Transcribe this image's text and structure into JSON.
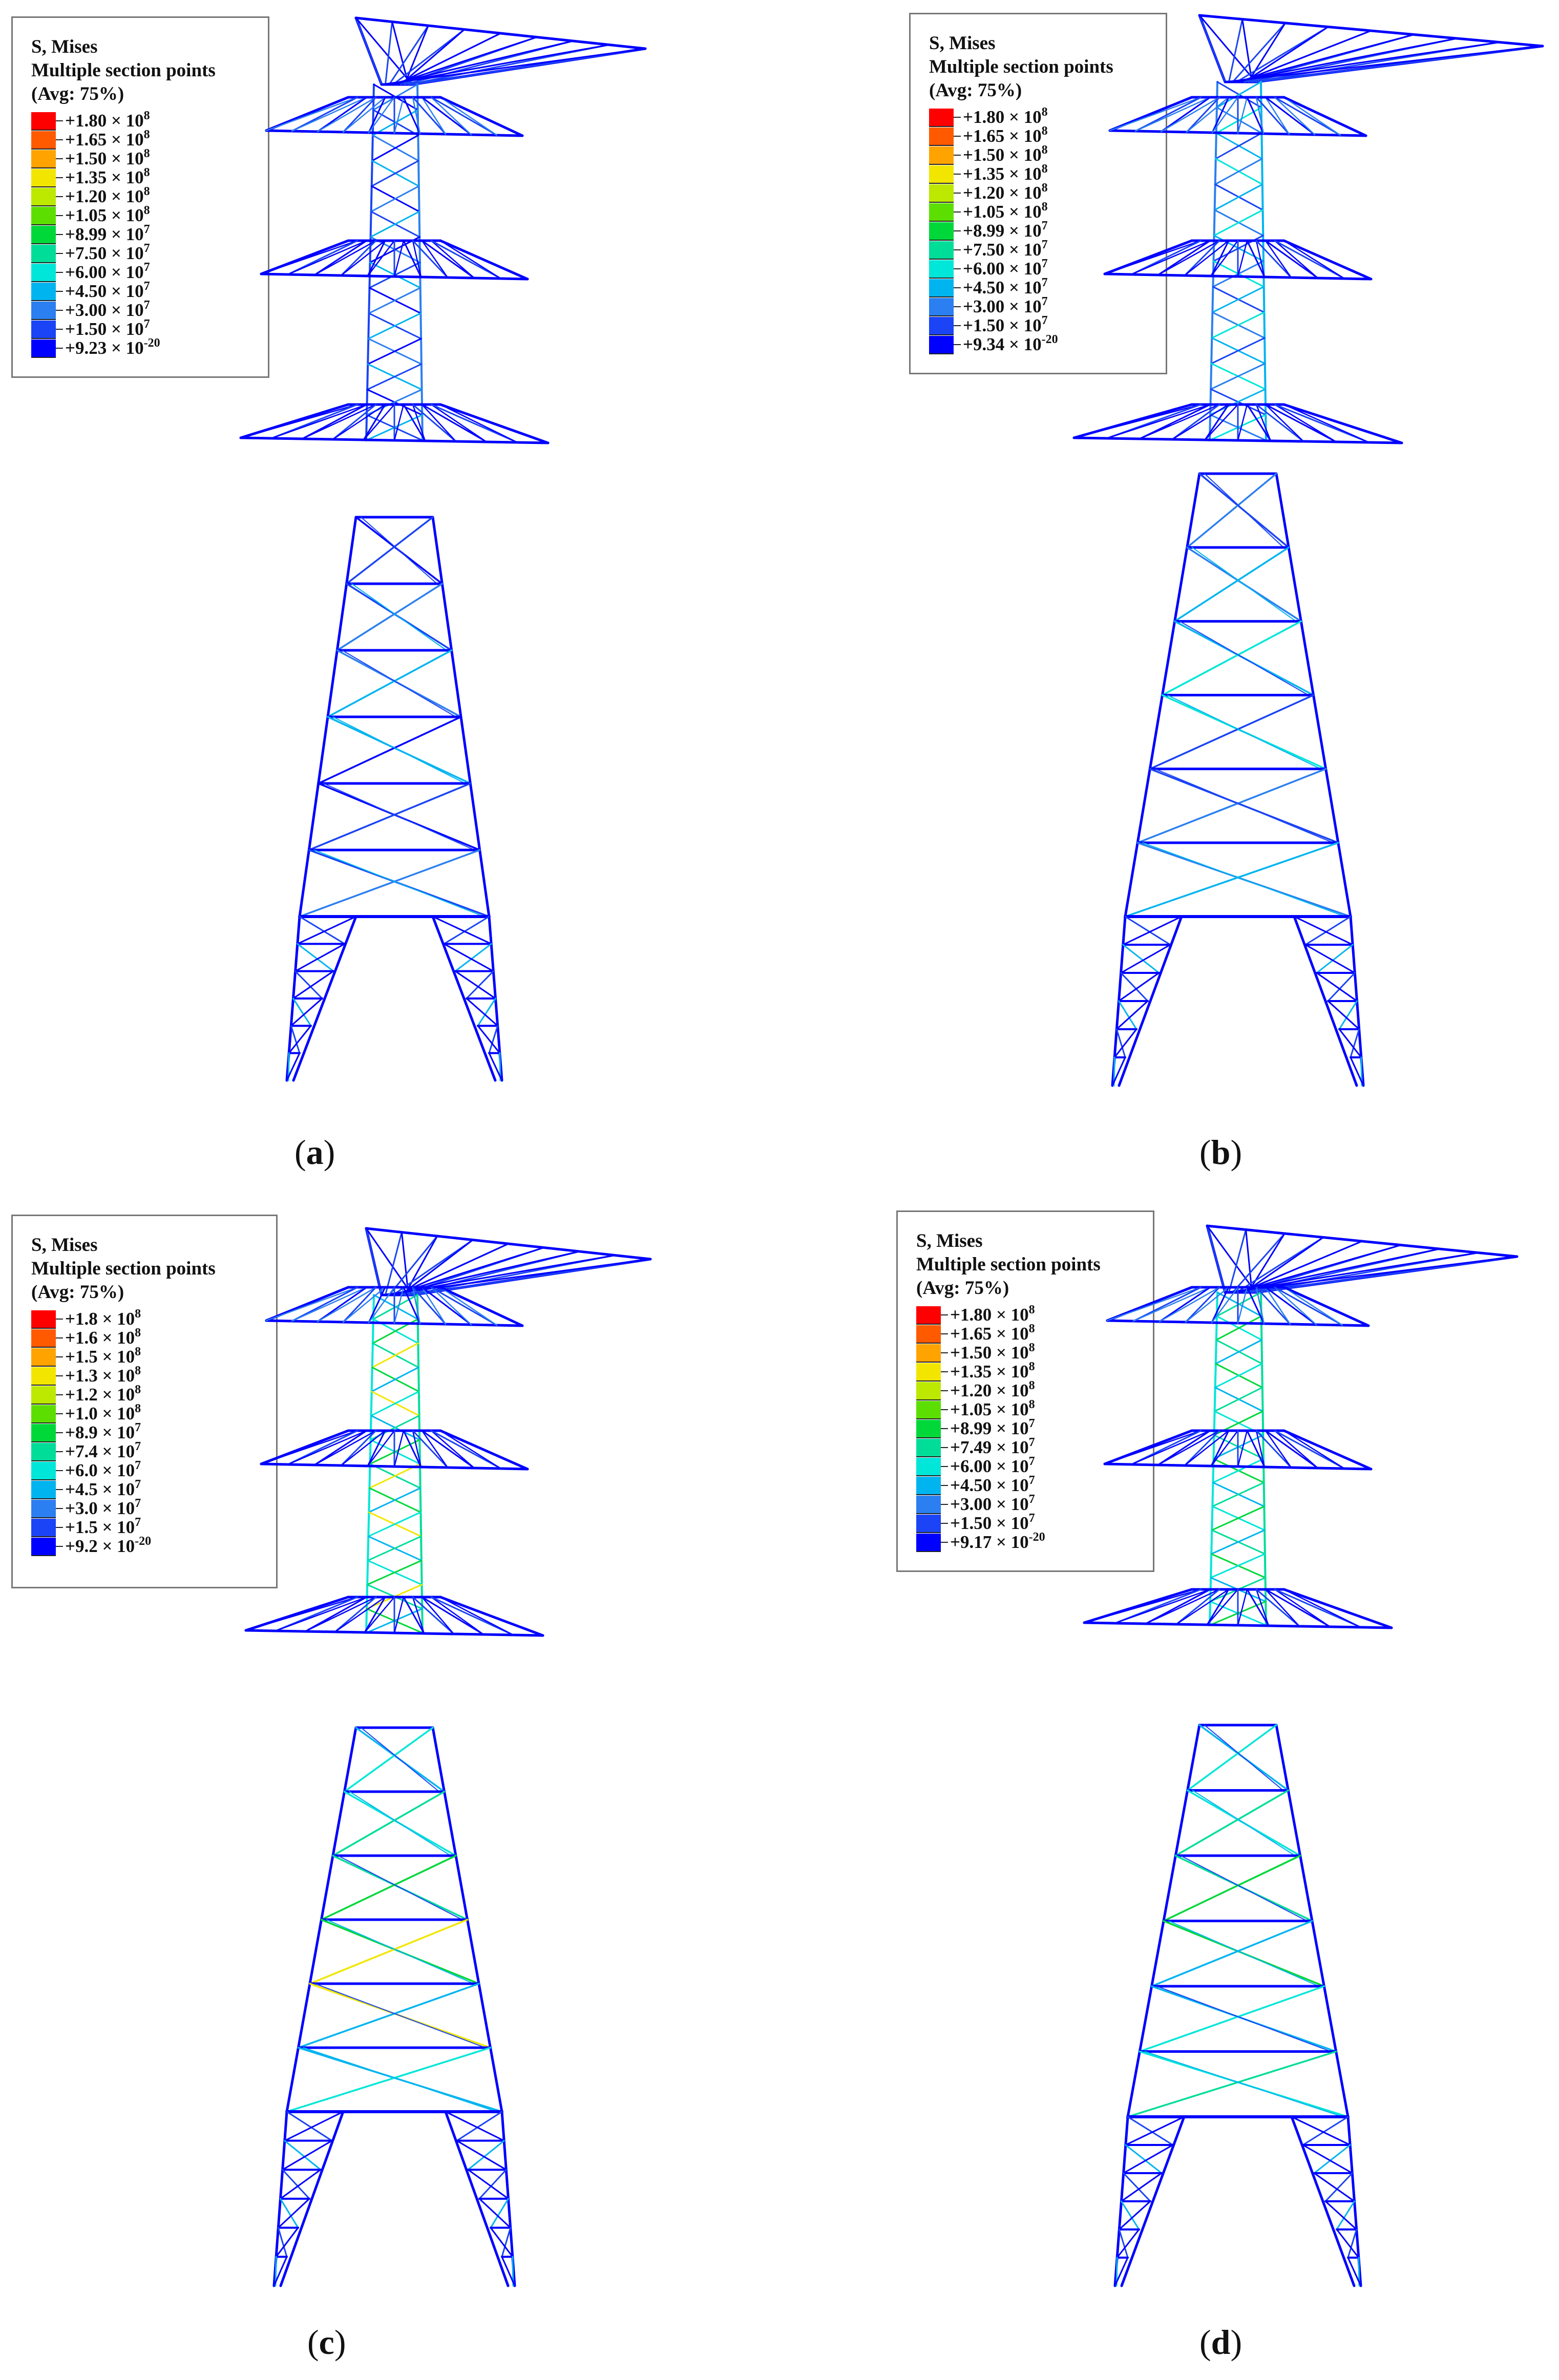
{
  "legend_title_line1": "S, Mises",
  "legend_title_line2": "Multiple section points",
  "legend_title_line3": "(Avg: 75%)",
  "colors": [
    "#ff0000",
    "#ff5a00",
    "#ffa300",
    "#f2e600",
    "#bde800",
    "#5cdf00",
    "#00d83a",
    "#00dd99",
    "#00e6d8",
    "#00b4f0",
    "#2b7ff0",
    "#1a44f5",
    "#0000ff"
  ],
  "panels": [
    {
      "id": "a",
      "caption_open": "(",
      "caption_letter": "a",
      "caption_close": ")",
      "legend": [
        {
          "m": "+1.80",
          "e": "8"
        },
        {
          "m": "+1.65",
          "e": "8"
        },
        {
          "m": "+1.50",
          "e": "8"
        },
        {
          "m": "+1.35",
          "e": "8"
        },
        {
          "m": "+1.20",
          "e": "8"
        },
        {
          "m": "+1.05",
          "e": "8"
        },
        {
          "m": "+8.99",
          "e": "7"
        },
        {
          "m": "+7.50",
          "e": "7"
        },
        {
          "m": "+6.00",
          "e": "7"
        },
        {
          "m": "+4.50",
          "e": "7"
        },
        {
          "m": "+3.00",
          "e": "7"
        },
        {
          "m": "+1.50",
          "e": "7"
        },
        {
          "m": "+9.23",
          "e": "-20"
        }
      ]
    },
    {
      "id": "b",
      "caption_open": "(",
      "caption_letter": "b",
      "caption_close": ")",
      "legend": [
        {
          "m": "+1.80",
          "e": "8"
        },
        {
          "m": "+1.65",
          "e": "8"
        },
        {
          "m": "+1.50",
          "e": "8"
        },
        {
          "m": "+1.35",
          "e": "8"
        },
        {
          "m": "+1.20",
          "e": "8"
        },
        {
          "m": "+1.05",
          "e": "8"
        },
        {
          "m": "+8.99",
          "e": "7"
        },
        {
          "m": "+7.50",
          "e": "7"
        },
        {
          "m": "+6.00",
          "e": "7"
        },
        {
          "m": "+4.50",
          "e": "7"
        },
        {
          "m": "+3.00",
          "e": "7"
        },
        {
          "m": "+1.50",
          "e": "7"
        },
        {
          "m": "+9.34",
          "e": "-20"
        }
      ]
    },
    {
      "id": "c",
      "caption_open": "(",
      "caption_letter": "c",
      "caption_close": ")",
      "legend": [
        {
          "m": "+1.8",
          "e": "8"
        },
        {
          "m": "+1.6",
          "e": "8"
        },
        {
          "m": "+1.5",
          "e": "8"
        },
        {
          "m": "+1.3",
          "e": "8"
        },
        {
          "m": "+1.2",
          "e": "8"
        },
        {
          "m": "+1.0",
          "e": "8"
        },
        {
          "m": "+8.9",
          "e": "7"
        },
        {
          "m": "+7.4",
          "e": "7"
        },
        {
          "m": "+6.0",
          "e": "7"
        },
        {
          "m": "+4.5",
          "e": "7"
        },
        {
          "m": "+3.0",
          "e": "7"
        },
        {
          "m": "+1.5",
          "e": "7"
        },
        {
          "m": "+9.2",
          "e": "-20"
        }
      ]
    },
    {
      "id": "d",
      "caption_open": "(",
      "caption_letter": "d",
      "caption_close": ")",
      "legend": [
        {
          "m": "+1.80",
          "e": "8"
        },
        {
          "m": "+1.65",
          "e": "8"
        },
        {
          "m": "+1.50",
          "e": "8"
        },
        {
          "m": "+1.35",
          "e": "8"
        },
        {
          "m": "+1.20",
          "e": "8"
        },
        {
          "m": "+1.05",
          "e": "8"
        },
        {
          "m": "+8.99",
          "e": "7"
        },
        {
          "m": "+7.49",
          "e": "7"
        },
        {
          "m": "+6.00",
          "e": "7"
        },
        {
          "m": "+4.50",
          "e": "7"
        },
        {
          "m": "+3.00",
          "e": "7"
        },
        {
          "m": "+1.50",
          "e": "7"
        },
        {
          "m": "+9.17",
          "e": "-20"
        }
      ]
    }
  ]
}
